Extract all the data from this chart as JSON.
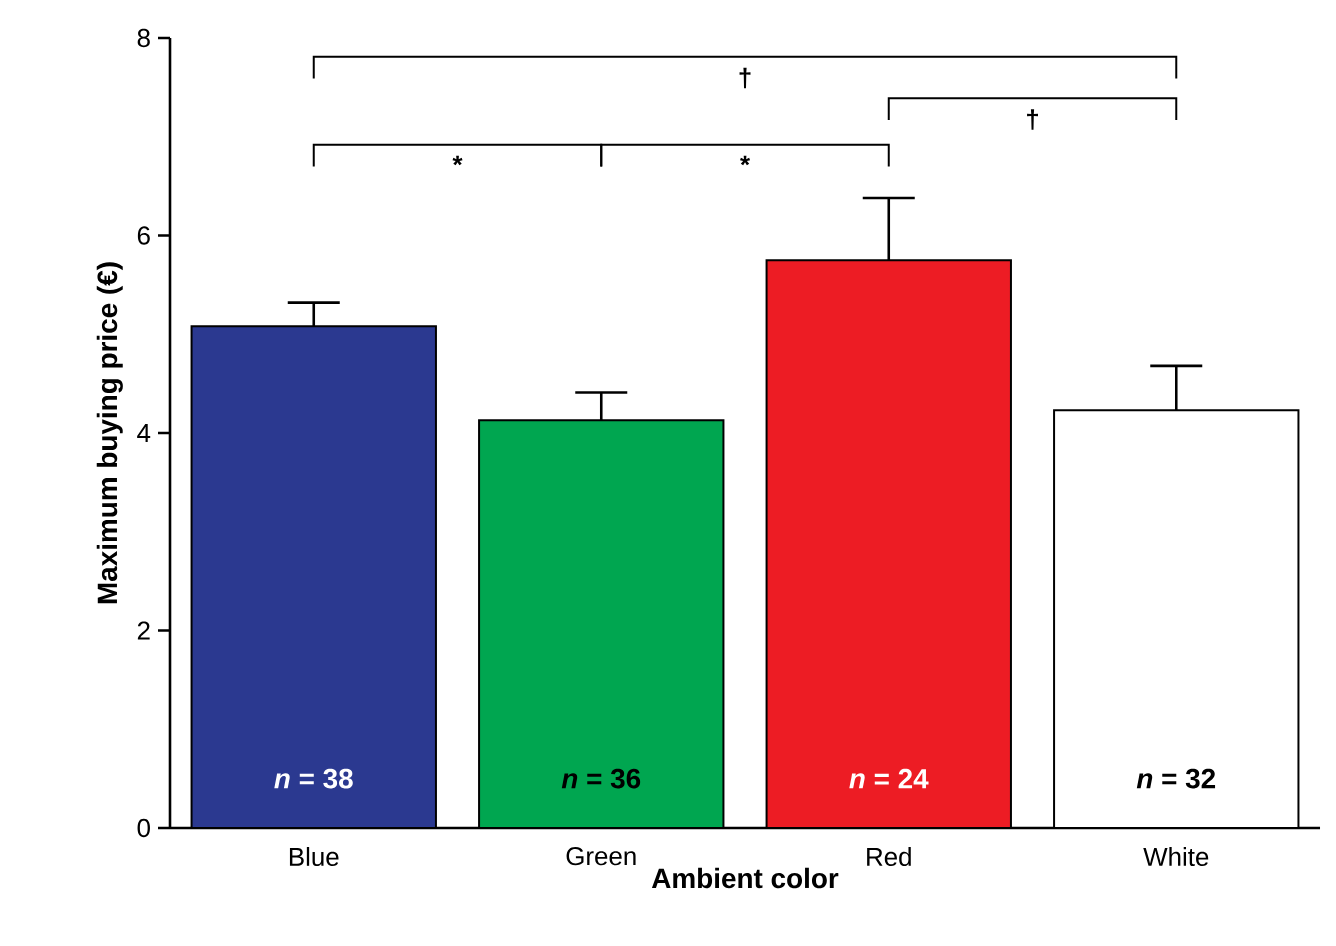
{
  "chart_data": {
    "type": "bar",
    "xlabel": "Ambient color",
    "ylabel": "Maximum buying price (€)",
    "categories": [
      "Blue",
      "Green",
      "Red",
      "White"
    ],
    "values": [
      5.08,
      4.13,
      5.75,
      4.23
    ],
    "colors": [
      "#2b3990",
      "#00a650",
      "#ed1c24",
      "#ffffff"
    ],
    "errors": [
      [
        5.08,
        5.32
      ],
      [
        4.13,
        4.41
      ],
      [
        5.75,
        6.38
      ],
      [
        4.23,
        4.68
      ]
    ],
    "ylim": [
      0,
      8
    ],
    "yticks": [
      0,
      2,
      4,
      6,
      8
    ],
    "annotations": [
      "*",
      "*",
      "†",
      "†",
      "*n* = 38",
      "*n* = 36",
      "*n* = 24",
      "*n* = 32"
    ]
  }
}
